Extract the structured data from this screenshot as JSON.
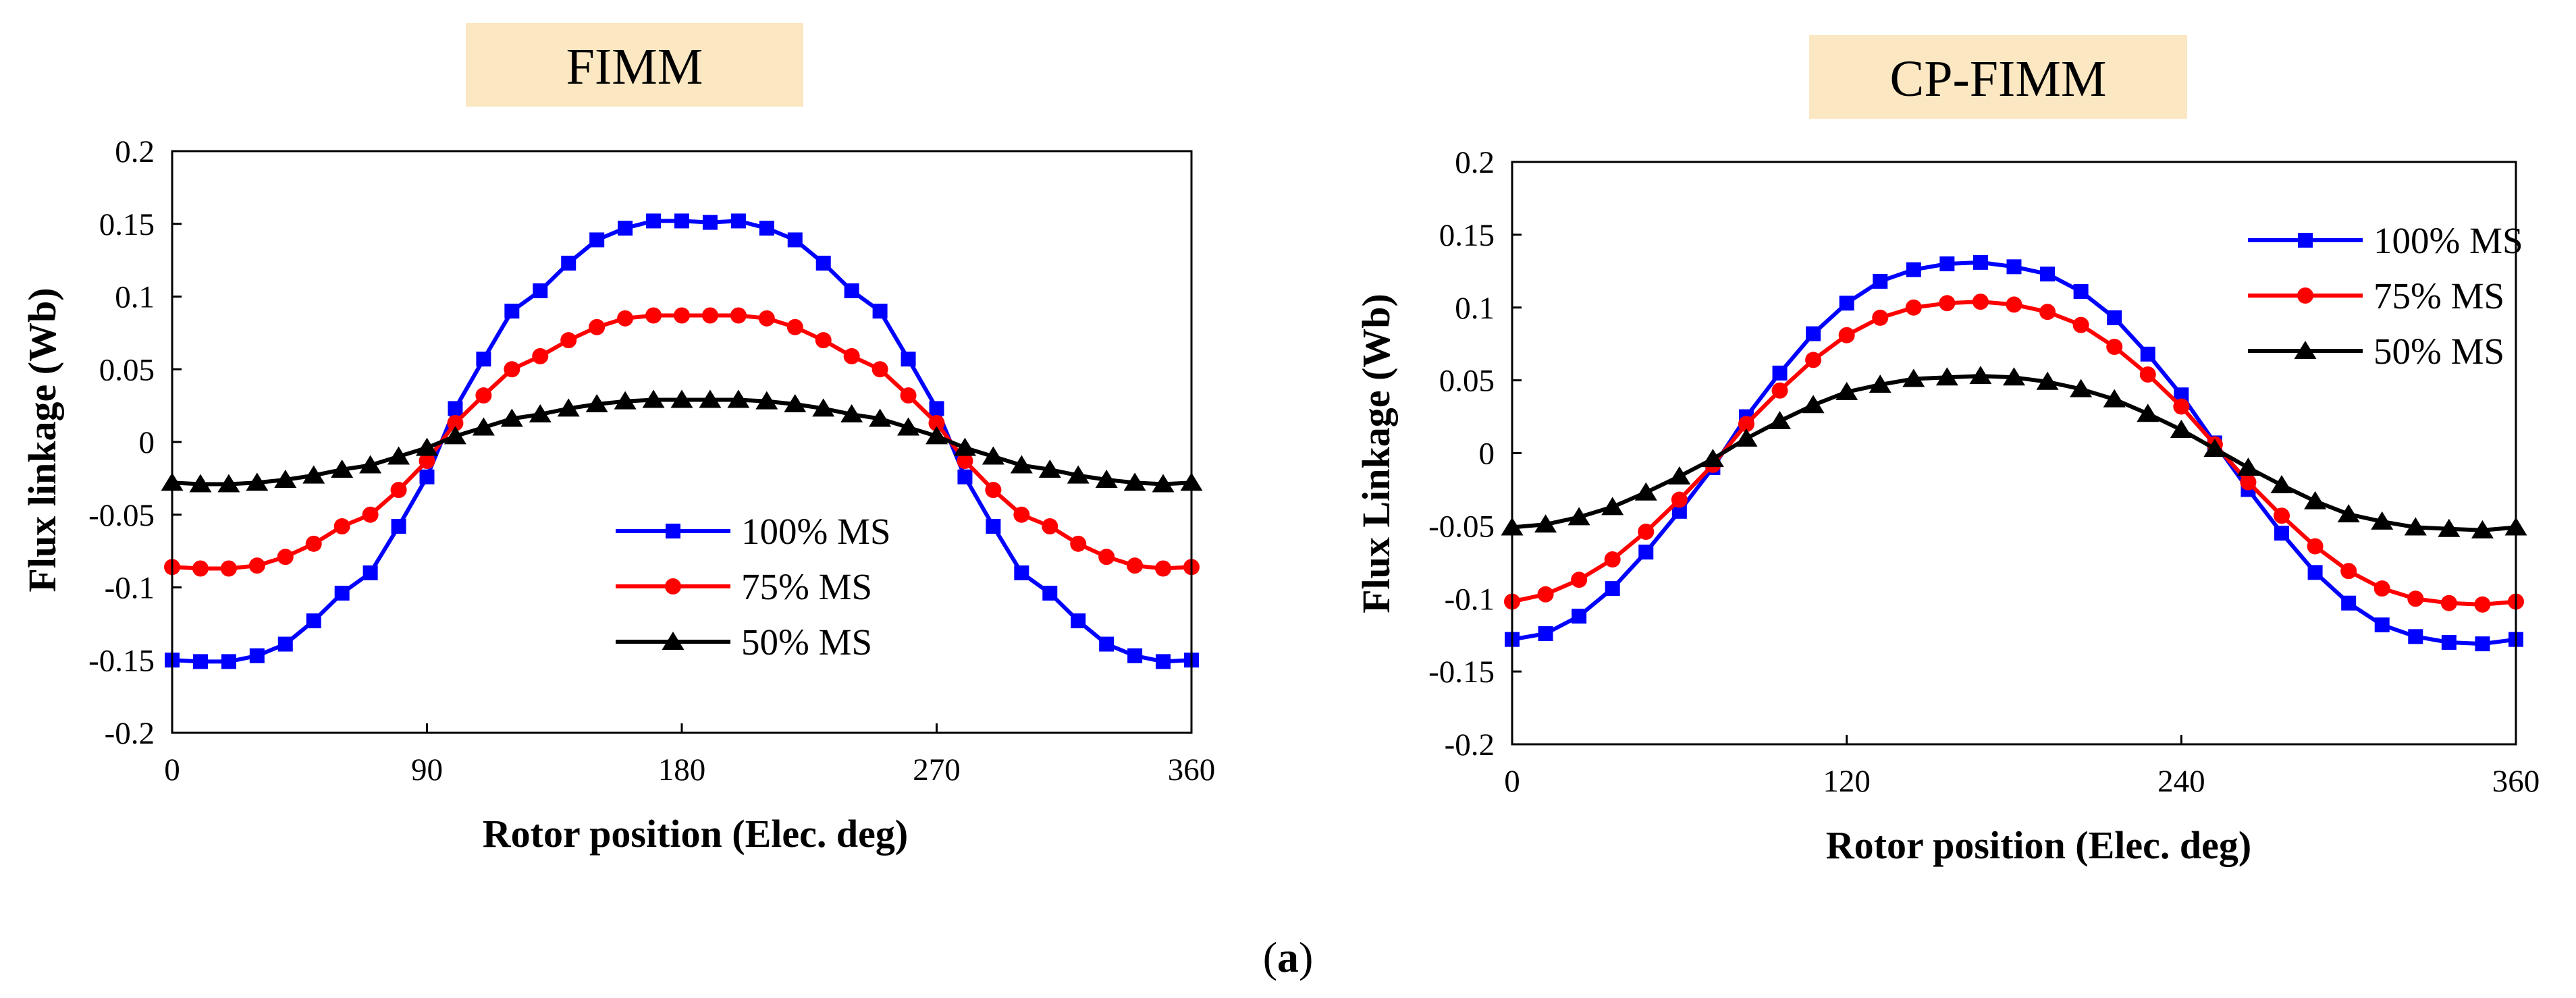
{
  "figure": {
    "caption_open": "(",
    "caption_letter": "a",
    "caption_close": ")",
    "colors": {
      "title_box": "#fbe7c2",
      "axis": "#000000"
    }
  },
  "chart_data": [
    {
      "type": "line",
      "title": "FIMM",
      "xlabel": "Rotor position (Elec. deg)",
      "ylabel": "Flux linkage (Wb)",
      "xlim": [
        0,
        360
      ],
      "ylim": [
        -0.2,
        0.2
      ],
      "xticks": [
        0,
        90,
        180,
        270,
        360
      ],
      "xtick_labels": [
        "0",
        "90",
        "180",
        "270",
        "360"
      ],
      "yticks": [
        0.2,
        0.15,
        0.1,
        0.05,
        0,
        -0.05,
        -0.1,
        -0.15,
        -0.2
      ],
      "ytick_labels": [
        "0.2",
        "0.15",
        "0.1",
        "0.05",
        "0",
        "-0.05",
        "-0.1",
        "-0.15",
        "-0.2"
      ],
      "legend_position": "lower-center",
      "x": [
        0,
        10,
        20,
        30,
        40,
        50,
        60,
        70,
        80,
        90,
        100,
        110,
        120,
        130,
        140,
        150,
        160,
        170,
        180,
        190,
        200,
        210,
        220,
        230,
        240,
        250,
        260,
        270,
        280,
        290,
        300,
        310,
        320,
        330,
        340,
        350,
        360
      ],
      "series": [
        {
          "name": "100% MS",
          "color": "#0000ff",
          "marker": "square",
          "values": [
            -0.15,
            -0.151,
            -0.151,
            -0.147,
            -0.139,
            -0.123,
            -0.104,
            -0.09,
            -0.058,
            -0.024,
            0.023,
            0.057,
            0.09,
            0.104,
            0.123,
            0.139,
            0.147,
            0.152,
            0.152,
            0.151,
            0.152,
            0.147,
            0.139,
            0.123,
            0.104,
            0.09,
            0.057,
            0.023,
            -0.024,
            -0.058,
            -0.09,
            -0.104,
            -0.123,
            -0.139,
            -0.147,
            -0.151,
            -0.15
          ]
        },
        {
          "name": "75% MS",
          "color": "#ff0000",
          "marker": "circle",
          "values": [
            -0.086,
            -0.087,
            -0.087,
            -0.085,
            -0.079,
            -0.07,
            -0.058,
            -0.05,
            -0.033,
            -0.013,
            0.013,
            0.032,
            0.05,
            0.059,
            0.07,
            0.079,
            0.085,
            0.087,
            0.087,
            0.087,
            0.087,
            0.085,
            0.079,
            0.07,
            0.059,
            0.05,
            0.032,
            0.013,
            -0.013,
            -0.033,
            -0.05,
            -0.058,
            -0.07,
            -0.079,
            -0.085,
            -0.087,
            -0.086
          ]
        },
        {
          "name": "50% MS",
          "color": "#000000",
          "marker": "triangle",
          "values": [
            -0.028,
            -0.029,
            -0.029,
            -0.028,
            -0.026,
            -0.023,
            -0.019,
            -0.016,
            -0.01,
            -0.004,
            0.004,
            0.01,
            0.016,
            0.019,
            0.023,
            0.026,
            0.028,
            0.029,
            0.029,
            0.029,
            0.029,
            0.028,
            0.026,
            0.023,
            0.019,
            0.016,
            0.01,
            0.004,
            -0.004,
            -0.01,
            -0.016,
            -0.019,
            -0.023,
            -0.026,
            -0.028,
            -0.029,
            -0.028
          ]
        }
      ]
    },
    {
      "type": "line",
      "title": "CP-FIMM",
      "xlabel": "Rotor position (Elec. deg)",
      "ylabel": "Flux Linkage (Wb)",
      "xlim": [
        0,
        360
      ],
      "ylim": [
        -0.2,
        0.2
      ],
      "xticks": [
        0,
        120,
        240,
        360
      ],
      "xtick_labels": [
        "0",
        "120",
        "240",
        "360"
      ],
      "yticks": [
        0.2,
        0.15,
        0.1,
        0.05,
        0,
        -0.05,
        -0.1,
        -0.15,
        -0.2
      ],
      "ytick_labels": [
        "0.2",
        "0.15",
        "0.1",
        "0.05",
        "0",
        "-0.05",
        "-0.1",
        "-0.15",
        "-0.2"
      ],
      "legend_position": "top-right",
      "x": [
        0,
        12,
        24,
        36,
        48,
        60,
        72,
        84,
        96,
        108,
        120,
        132,
        144,
        156,
        168,
        180,
        192,
        204,
        216,
        228,
        240,
        252,
        264,
        276,
        288,
        300,
        312,
        324,
        336,
        348,
        360
      ],
      "series": [
        {
          "name": "100% MS",
          "color": "#0000ff",
          "marker": "square",
          "values": [
            -0.128,
            -0.124,
            -0.112,
            -0.093,
            -0.068,
            -0.04,
            -0.01,
            0.025,
            0.055,
            0.082,
            0.103,
            0.118,
            0.126,
            0.13,
            0.131,
            0.128,
            0.123,
            0.111,
            0.093,
            0.068,
            0.04,
            0.007,
            -0.025,
            -0.055,
            -0.082,
            -0.103,
            -0.118,
            -0.126,
            -0.13,
            -0.131,
            -0.128
          ]
        },
        {
          "name": "75% MS",
          "color": "#ff0000",
          "marker": "circle",
          "values": [
            -0.102,
            -0.097,
            -0.087,
            -0.073,
            -0.054,
            -0.032,
            -0.008,
            0.02,
            0.043,
            0.064,
            0.081,
            0.093,
            0.1,
            0.103,
            0.104,
            0.102,
            0.097,
            0.088,
            0.073,
            0.054,
            0.032,
            0.006,
            -0.02,
            -0.043,
            -0.064,
            -0.081,
            -0.093,
            -0.1,
            -0.103,
            -0.104,
            -0.102
          ]
        },
        {
          "name": "50% MS",
          "color": "#000000",
          "marker": "triangle",
          "values": [
            -0.051,
            -0.049,
            -0.044,
            -0.037,
            -0.027,
            -0.016,
            -0.004,
            0.01,
            0.022,
            0.033,
            0.042,
            0.047,
            0.051,
            0.052,
            0.053,
            0.052,
            0.049,
            0.044,
            0.037,
            0.027,
            0.016,
            0.003,
            -0.01,
            -0.022,
            -0.033,
            -0.042,
            -0.047,
            -0.051,
            -0.052,
            -0.053,
            -0.051
          ]
        }
      ]
    }
  ]
}
